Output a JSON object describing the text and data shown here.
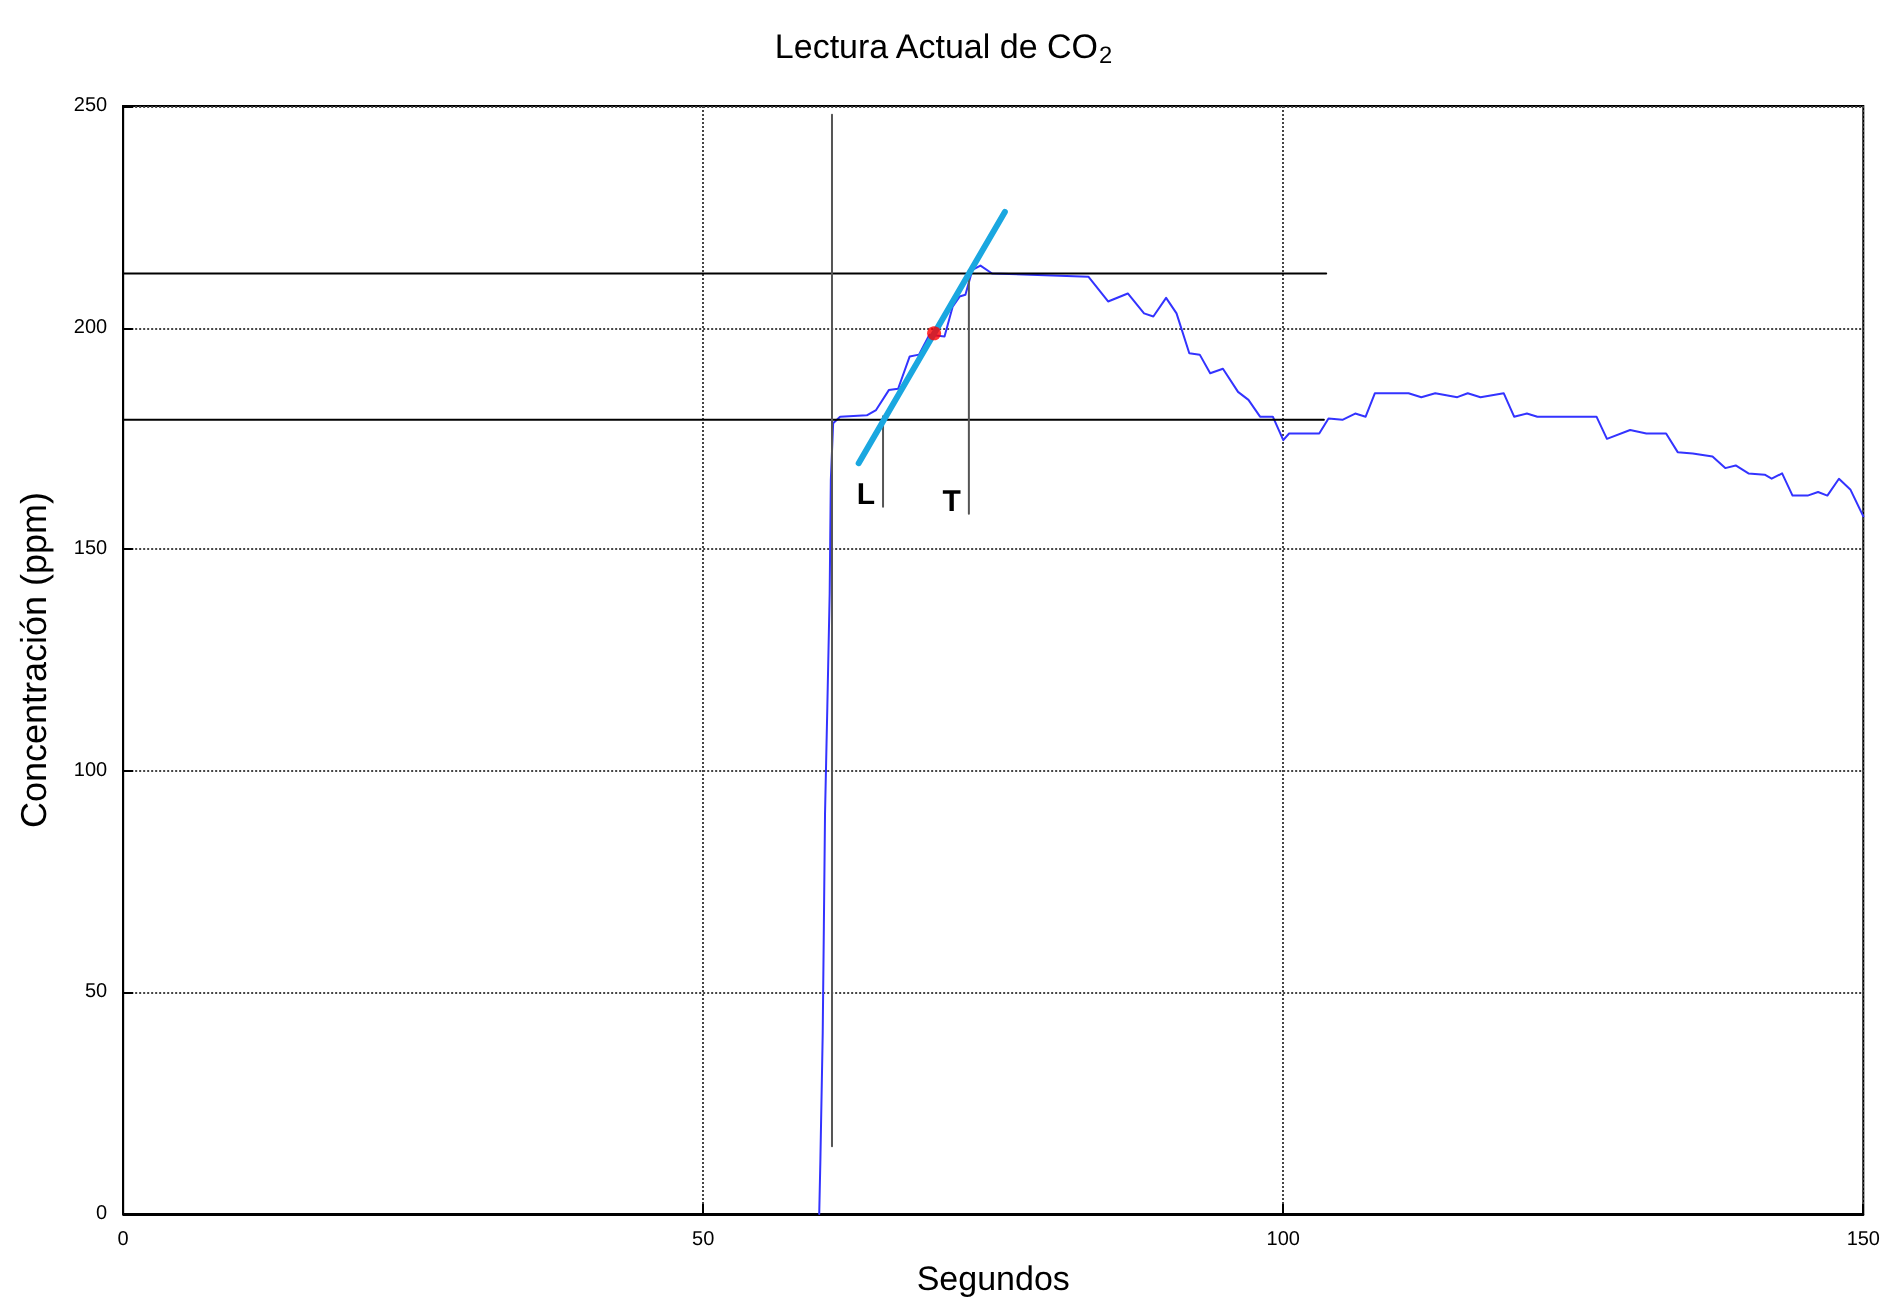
{
  "chart_data": {
    "type": "line",
    "title": "Lectura Actual de CO$_{2}$",
    "xlabel": "Segundos",
    "ylabel": "Concentración (ppm)",
    "xlim": [
      0,
      150
    ],
    "xticks": [
      0,
      50,
      100,
      150
    ],
    "ylim": [
      0,
      250
    ],
    "yticks": [
      0,
      50,
      100,
      150,
      200,
      250
    ],
    "grid": true,
    "marker": "none",
    "line_style": "solid",
    "series": [
      {
        "color": "#3333ff",
        "x": [
          60.0,
          60.1,
          60.3,
          60.4,
          60.5,
          60.7,
          60.9,
          61.0,
          61.2,
          61.8,
          64.1,
          64.9,
          66.0,
          66.8,
          67.8,
          68.6,
          69.5,
          70.8,
          71.5,
          72.1,
          72.6,
          73.2,
          73.9,
          74.9,
          83.2,
          84.9,
          86.6,
          88.0,
          88.8,
          89.9,
          90.8,
          91.9,
          92.8,
          93.7,
          94.8,
          96.1,
          97.0,
          98.0,
          99.1,
          100.0,
          100.5,
          103.1,
          103.9,
          105.1,
          106.2,
          107.1,
          107.9,
          110.8,
          111.9,
          113.1,
          115.0,
          115.9,
          117.0,
          119.0,
          119.9,
          121.0,
          121.9,
          127.0,
          127.9,
          129.9,
          131.3,
          133.0,
          134.0,
          135.3,
          137.0,
          138.1,
          139.0,
          140.1,
          141.5,
          142.1,
          143.0,
          143.9,
          145.2,
          146.1,
          146.9,
          147.9,
          148.9,
          150.0
        ],
        "values": [
          0,
          12.2,
          40.7,
          65.0,
          90.4,
          114.6,
          140.0,
          165.6,
          178.4,
          179.9,
          180.2,
          181.4,
          185.9,
          186.2,
          193.5,
          193.9,
          198.4,
          198.0,
          204.7,
          207.0,
          207.4,
          213.0,
          214.0,
          212.2,
          211.5,
          205.9,
          207.7,
          203.2,
          202.5,
          206.7,
          203.2,
          194.2,
          193.9,
          189.7,
          190.7,
          185.5,
          183.7,
          179.9,
          179.9,
          174.6,
          176.1,
          176.1,
          179.5,
          179.2,
          180.6,
          179.9,
          185.2,
          185.2,
          184.3,
          185.2,
          184.3,
          185.2,
          184.3,
          185.2,
          179.9,
          180.6,
          179.9,
          179.9,
          174.9,
          176.9,
          176.1,
          176.1,
          171.9,
          171.6,
          170.9,
          168.3,
          168.9,
          167.1,
          166.8,
          165.9,
          167.1,
          162.1,
          162.1,
          162.9,
          162.1,
          165.9,
          163.4,
          157.4
        ]
      },
      {
        "color": "#000000",
        "x": [
          0,
          103.7
        ],
        "values": [
          212.2,
          212.2
        ]
      },
      {
        "color": "#000000",
        "x": [
          0,
          103.5
        ],
        "values": [
          179.2,
          179.2
        ]
      },
      {
        "color": "#555555",
        "x": [
          61.1,
          61.1
        ],
        "values": [
          15.3,
          248
        ]
      },
      {
        "name": "L",
        "color": "#555555",
        "x": [
          65.5,
          65.5
        ],
        "values": [
          180,
          159.6
        ]
      },
      {
        "name": "T",
        "color": "#555555",
        "x": [
          72.9,
          72.9
        ],
        "values": [
          213,
          158
        ]
      },
      {
        "color": "#1aa7e0",
        "x": [
          63.4,
          76.0
        ],
        "values": [
          169.4,
          226.1
        ]
      },
      {
        "type": "scatter",
        "marker": "circle",
        "color": "#ff0000",
        "x": [
          69.9
        ],
        "values": [
          198.7
        ]
      }
    ]
  }
}
